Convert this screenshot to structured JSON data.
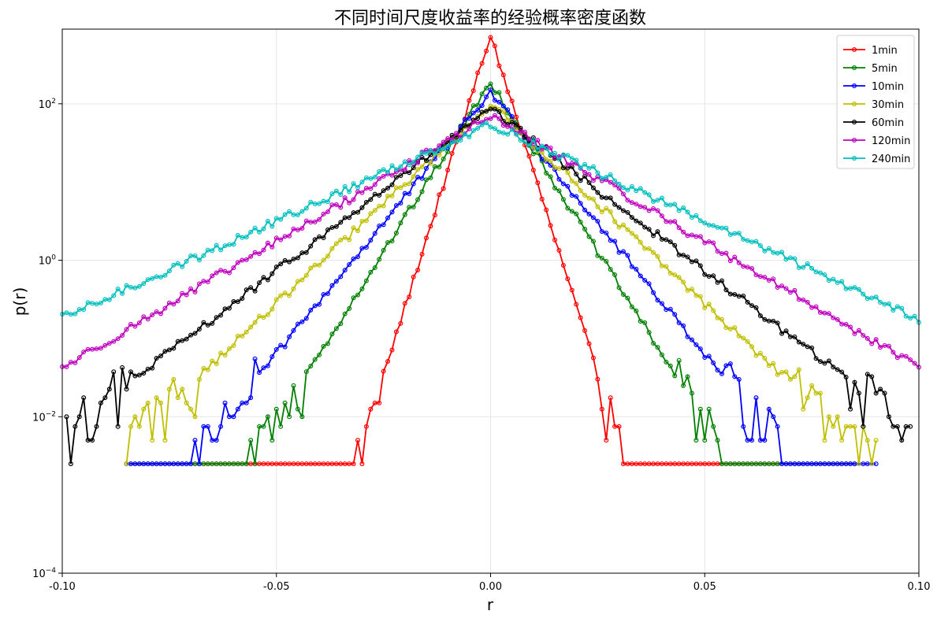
{
  "chart_data": {
    "type": "line",
    "title": "不同时间尺度收益率的经验概率密度函数",
    "xlabel": "r",
    "ylabel": "p(r)",
    "xlim": [
      -0.1,
      0.1
    ],
    "ylim": [
      0.0001,
      900
    ],
    "yscale": "log",
    "grid": true,
    "legend_position": "top-right",
    "xticks": [
      {
        "value": -0.1,
        "label": "-0.10"
      },
      {
        "value": -0.05,
        "label": "-0.05"
      },
      {
        "value": 0.0,
        "label": "0.00"
      },
      {
        "value": 0.05,
        "label": "0.05"
      },
      {
        "value": 0.1,
        "label": "0.10"
      }
    ],
    "yticks": [
      {
        "value": 0.0001,
        "mantissa": "10",
        "exponent": "−4"
      },
      {
        "value": 0.01,
        "mantissa": "10",
        "exponent": "−2"
      },
      {
        "value": 1,
        "mantissa": "10",
        "exponent": "0"
      },
      {
        "value": 100,
        "mantissa": "10",
        "exponent": "2"
      }
    ],
    "x_step": 0.001,
    "series": [
      {
        "name": "1min",
        "color": "#ff0000",
        "peak": 750,
        "width": 0.0025,
        "x_range": [
          -0.085,
          0.085
        ],
        "floor": 0.0025
      },
      {
        "name": "5min",
        "color": "#008000",
        "peak": 190,
        "width": 0.005,
        "x_range": [
          -0.085,
          0.085
        ],
        "floor": 0.0025
      },
      {
        "name": "10min",
        "color": "#0000ff",
        "peak": 140,
        "width": 0.0065,
        "x_range": [
          -0.085,
          0.09
        ],
        "floor": 0.0025
      },
      {
        "name": "30min",
        "color": "#bfbf00",
        "peak": 100,
        "width": 0.0085,
        "x_range": [
          -0.085,
          0.09
        ],
        "floor": 0.0025
      },
      {
        "name": "60min",
        "color": "#000000",
        "peak": 85,
        "width": 0.0105,
        "x_range": [
          -0.099,
          0.098
        ],
        "floor": 0.0025
      },
      {
        "name": "120min",
        "color": "#bf00bf",
        "peak": 70,
        "width": 0.0135,
        "x_range": [
          -0.1,
          0.1
        ],
        "floor": 0.0025
      },
      {
        "name": "240min",
        "color": "#00bfbf",
        "peak": 55,
        "width": 0.0175,
        "x_range": [
          -0.1,
          0.1
        ],
        "floor": 0.0025
      }
    ]
  }
}
